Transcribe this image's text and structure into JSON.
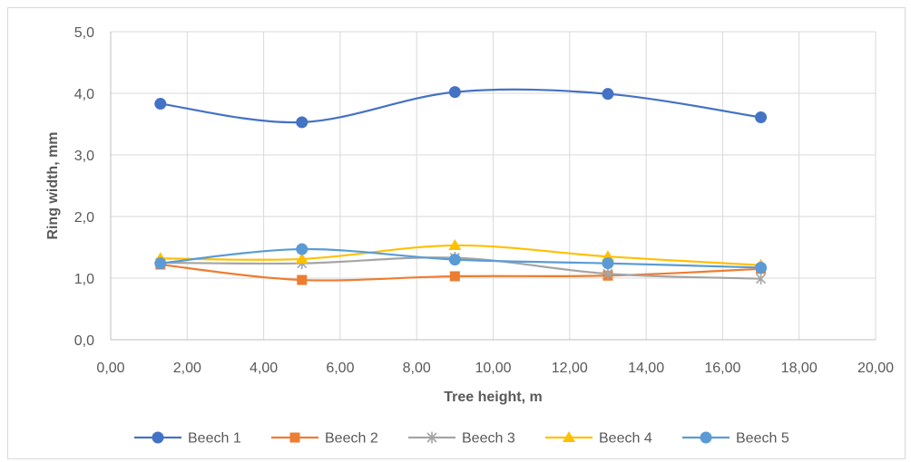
{
  "chart_data": {
    "type": "line",
    "smooth": true,
    "xlabel": "Tree height, m",
    "ylabel": "Ring width, mm",
    "xlim": [
      0,
      20
    ],
    "ylim": [
      0,
      5
    ],
    "x_ticks": [
      "0,00",
      "2,00",
      "4,00",
      "6,00",
      "8,00",
      "10,00",
      "12,00",
      "14,00",
      "16,00",
      "18,00",
      "20,00"
    ],
    "y_ticks": [
      "0,0",
      "1,0",
      "2,0",
      "3,0",
      "4,0",
      "5,0"
    ],
    "grid": true,
    "legend_position": "bottom",
    "x": [
      1.3,
      5,
      9,
      13,
      17
    ],
    "series": [
      {
        "name": "Beech 1",
        "color": "#4472C4",
        "marker": "circle",
        "values": [
          3.83,
          3.53,
          4.02,
          3.99,
          3.61
        ]
      },
      {
        "name": "Beech 2",
        "color": "#ED7D31",
        "marker": "square",
        "values": [
          1.22,
          0.97,
          1.03,
          1.04,
          1.15
        ]
      },
      {
        "name": "Beech 3",
        "color": "#A5A5A5",
        "marker": "asterisk",
        "values": [
          1.25,
          1.24,
          1.33,
          1.07,
          0.99
        ]
      },
      {
        "name": "Beech 4",
        "color": "#FFC000",
        "marker": "triangle",
        "values": [
          1.32,
          1.31,
          1.53,
          1.35,
          1.21
        ]
      },
      {
        "name": "Beech 5",
        "color": "#5B9BD5",
        "marker": "circle",
        "values": [
          1.24,
          1.47,
          1.3,
          1.24,
          1.17
        ]
      }
    ]
  }
}
